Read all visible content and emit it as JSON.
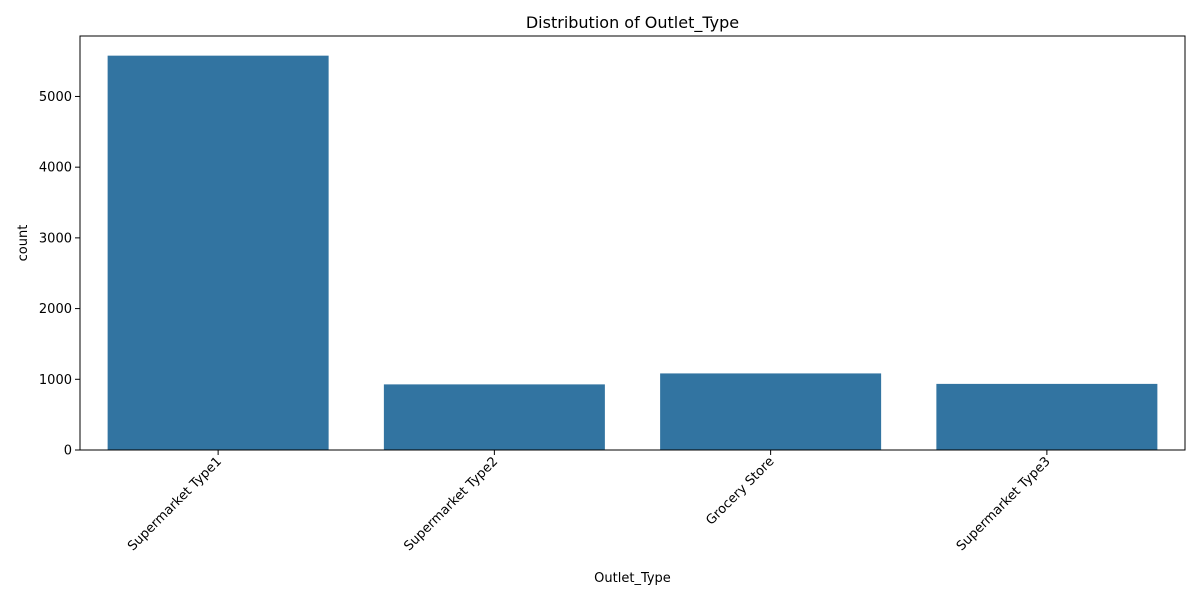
{
  "chart_data": {
    "type": "bar",
    "title": "Distribution of Outlet_Type",
    "xlabel": "Outlet_Type",
    "ylabel": "count",
    "categories": [
      "Supermarket Type1",
      "Supermarket Type2",
      "Grocery Store",
      "Supermarket Type3"
    ],
    "values": [
      5577,
      928,
      1083,
      935
    ],
    "ylim": [
      0,
      5855
    ],
    "yticks": [
      0,
      1000,
      2000,
      3000,
      4000,
      5000
    ],
    "bar_color": "#3274a1",
    "grid": false,
    "xtick_rotation_deg": 45,
    "legend": "none"
  }
}
